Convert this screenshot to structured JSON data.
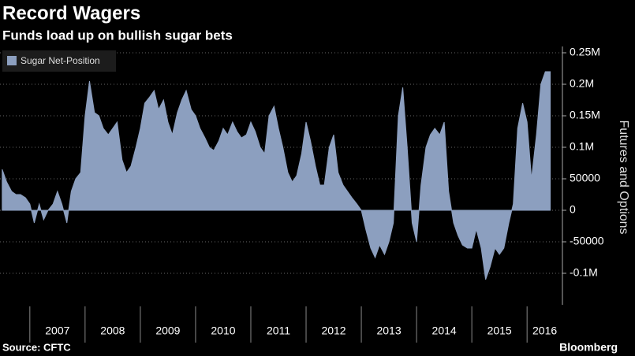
{
  "chart_data": {
    "type": "area",
    "title": "Record Wagers",
    "subtitle": "Funds load up on bullish sugar bets",
    "y_label": "Futures and Options",
    "source": "Source: CFTC",
    "brand": "Bloomberg",
    "x": [
      2006.5,
      2006.58,
      2006.67,
      2006.75,
      2006.83,
      2006.92,
      2007.0,
      2007.08,
      2007.17,
      2007.25,
      2007.33,
      2007.42,
      2007.5,
      2007.58,
      2007.67,
      2007.75,
      2007.83,
      2007.92,
      2008.0,
      2008.08,
      2008.17,
      2008.25,
      2008.33,
      2008.42,
      2008.5,
      2008.58,
      2008.67,
      2008.75,
      2008.83,
      2008.92,
      2009.0,
      2009.08,
      2009.17,
      2009.25,
      2009.33,
      2009.42,
      2009.5,
      2009.58,
      2009.67,
      2009.75,
      2009.83,
      2009.92,
      2010.0,
      2010.08,
      2010.17,
      2010.25,
      2010.33,
      2010.42,
      2010.5,
      2010.58,
      2010.67,
      2010.75,
      2010.83,
      2010.92,
      2011.0,
      2011.08,
      2011.17,
      2011.25,
      2011.33,
      2011.42,
      2011.5,
      2011.58,
      2011.67,
      2011.75,
      2011.83,
      2011.92,
      2012.0,
      2012.08,
      2012.17,
      2012.25,
      2012.33,
      2012.42,
      2012.5,
      2012.58,
      2012.67,
      2012.75,
      2012.83,
      2012.92,
      2013.0,
      2013.08,
      2013.17,
      2013.25,
      2013.33,
      2013.42,
      2013.5,
      2013.58,
      2013.67,
      2013.75,
      2013.83,
      2013.92,
      2014.0,
      2014.08,
      2014.17,
      2014.25,
      2014.33,
      2014.42,
      2014.5,
      2014.58,
      2014.67,
      2014.75,
      2014.83,
      2014.92,
      2015.0,
      2015.08,
      2015.17,
      2015.25,
      2015.33,
      2015.42,
      2015.5,
      2015.58,
      2015.67,
      2015.75,
      2015.83,
      2015.92,
      2016.0,
      2016.08,
      2016.17,
      2016.25,
      2016.33,
      2016.42
    ],
    "series": [
      {
        "name": "Sugar Net-Position",
        "color": "#8c9fbf",
        "values": [
          65000,
          45000,
          30000,
          25000,
          25000,
          20000,
          10000,
          -20000,
          10000,
          -15000,
          0,
          10000,
          30000,
          10000,
          -20000,
          30000,
          50000,
          60000,
          150000,
          205000,
          155000,
          150000,
          130000,
          120000,
          130000,
          140000,
          80000,
          60000,
          70000,
          100000,
          130000,
          170000,
          180000,
          190000,
          160000,
          175000,
          140000,
          120000,
          155000,
          175000,
          190000,
          160000,
          150000,
          130000,
          115000,
          100000,
          95000,
          110000,
          130000,
          120000,
          140000,
          125000,
          115000,
          120000,
          140000,
          125000,
          100000,
          90000,
          150000,
          165000,
          130000,
          100000,
          60000,
          45000,
          55000,
          90000,
          140000,
          110000,
          70000,
          40000,
          40000,
          100000,
          120000,
          60000,
          40000,
          30000,
          20000,
          10000,
          0,
          -30000,
          -60000,
          -75000,
          -55000,
          -70000,
          -50000,
          -20000,
          150000,
          195000,
          100000,
          -20000,
          -50000,
          40000,
          100000,
          120000,
          130000,
          120000,
          140000,
          30000,
          -20000,
          -40000,
          -55000,
          -60000,
          -60000,
          -30000,
          -60000,
          -110000,
          -90000,
          -60000,
          -70000,
          -60000,
          -20000,
          10000,
          130000,
          170000,
          140000,
          50000,
          120000,
          200000,
          220000,
          220000
        ]
      }
    ],
    "xlim": [
      2006.46,
      2016.64
    ],
    "xticks": [
      2007,
      2008,
      2009,
      2010,
      2011,
      2012,
      2013,
      2014,
      2015,
      2016
    ],
    "ylim": [
      -150000,
      260000
    ],
    "yticks": [
      {
        "value": 250000,
        "label": "0.25M"
      },
      {
        "value": 200000,
        "label": "0.2M"
      },
      {
        "value": 150000,
        "label": "0.15M"
      },
      {
        "value": 100000,
        "label": "0.1M"
      },
      50000,
      0,
      -50000,
      {
        "value": -100000,
        "label": "-0.1M"
      }
    ],
    "grid": true,
    "legend": "top-left"
  }
}
